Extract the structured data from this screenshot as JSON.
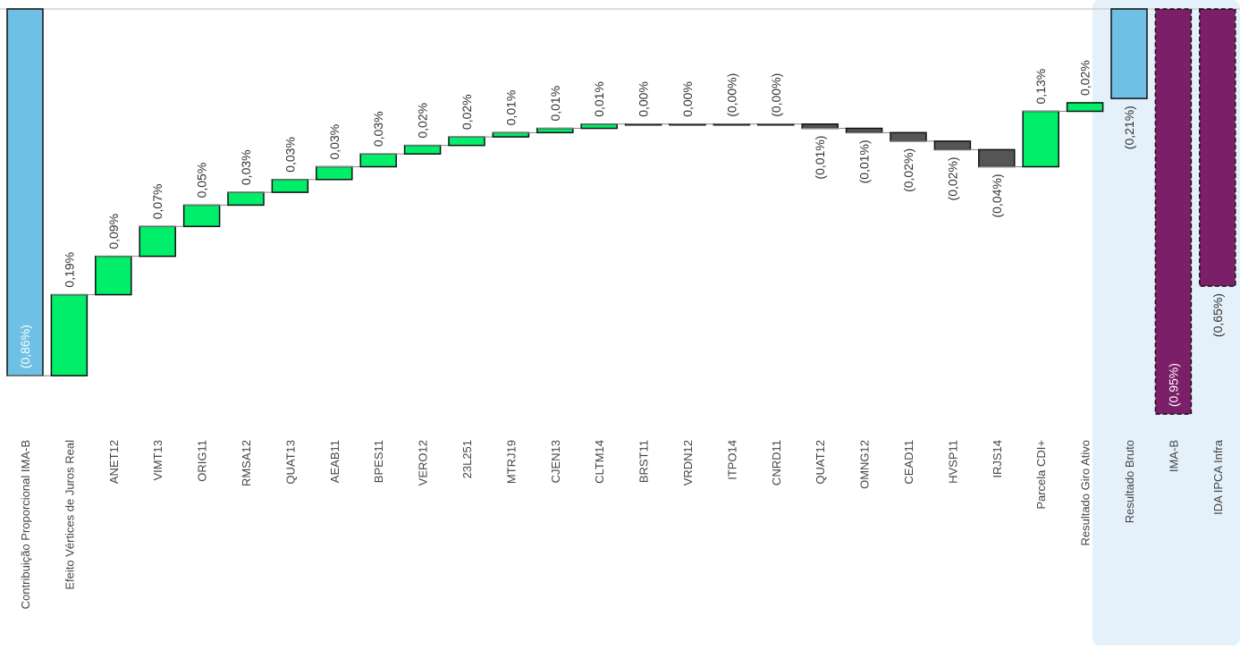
{
  "chart_data": {
    "type": "waterfall",
    "categories": [
      "Contribuição Proporcional IMA-B",
      "Efeito Vértices de Juros Real",
      "ANET12",
      "VIMT13",
      "ORIG11",
      "RMSA12",
      "QUAT13",
      "AEAB11",
      "BPES11",
      "VERO12",
      "23L251",
      "MTRJ19",
      "CJEN13",
      "CLTM14",
      "BRST11",
      "VRDN12",
      "ITPO14",
      "CNRD11",
      "QUAT12",
      "OMNG12",
      "CEAD11",
      "HVSP11",
      "IRJS14",
      "Parcela CDI+",
      "Resultado Giro Ativo",
      "Resultado Bruto",
      "IMA-B",
      "IDA IPCA Infra"
    ],
    "values": [
      -0.86,
      0.19,
      0.09,
      0.07,
      0.05,
      0.03,
      0.03,
      0.03,
      0.03,
      0.02,
      0.02,
      0.01,
      0.01,
      0.01,
      0.0,
      0.0,
      -0.0,
      -0.0,
      -0.01,
      -0.01,
      -0.02,
      -0.02,
      -0.04,
      0.13,
      0.02,
      -0.21,
      -0.95,
      -0.65
    ],
    "value_labels": [
      "(0,86%)",
      "0,19%",
      "0,09%",
      "0,07%",
      "0,05%",
      "0,03%",
      "0,03%",
      "0,03%",
      "0,03%",
      "0,02%",
      "0,02%",
      "0,01%",
      "0,01%",
      "0,01%",
      "0,00%",
      "0,00%",
      "(0,00%)",
      "(0,00%)",
      "(0,01%)",
      "(0,01%)",
      "(0,02%)",
      "(0,02%)",
      "(0,04%)",
      "0,13%",
      "0,02%",
      "(0,21%)",
      "(0,95%)",
      "(0,65%)"
    ],
    "measure": [
      "total",
      "relative",
      "relative",
      "relative",
      "relative",
      "relative",
      "relative",
      "relative",
      "relative",
      "relative",
      "relative",
      "relative",
      "relative",
      "relative",
      "relative",
      "relative",
      "relative",
      "relative",
      "relative",
      "relative",
      "relative",
      "relative",
      "relative",
      "relative",
      "relative",
      "total",
      "benchmark",
      "benchmark"
    ],
    "increase_color": "#00ee6a",
    "decrease_color": "#555555",
    "total_color": "#6ec1e4",
    "benchmark_color": "#7b2068",
    "ylim": [
      -1,
      0
    ]
  }
}
